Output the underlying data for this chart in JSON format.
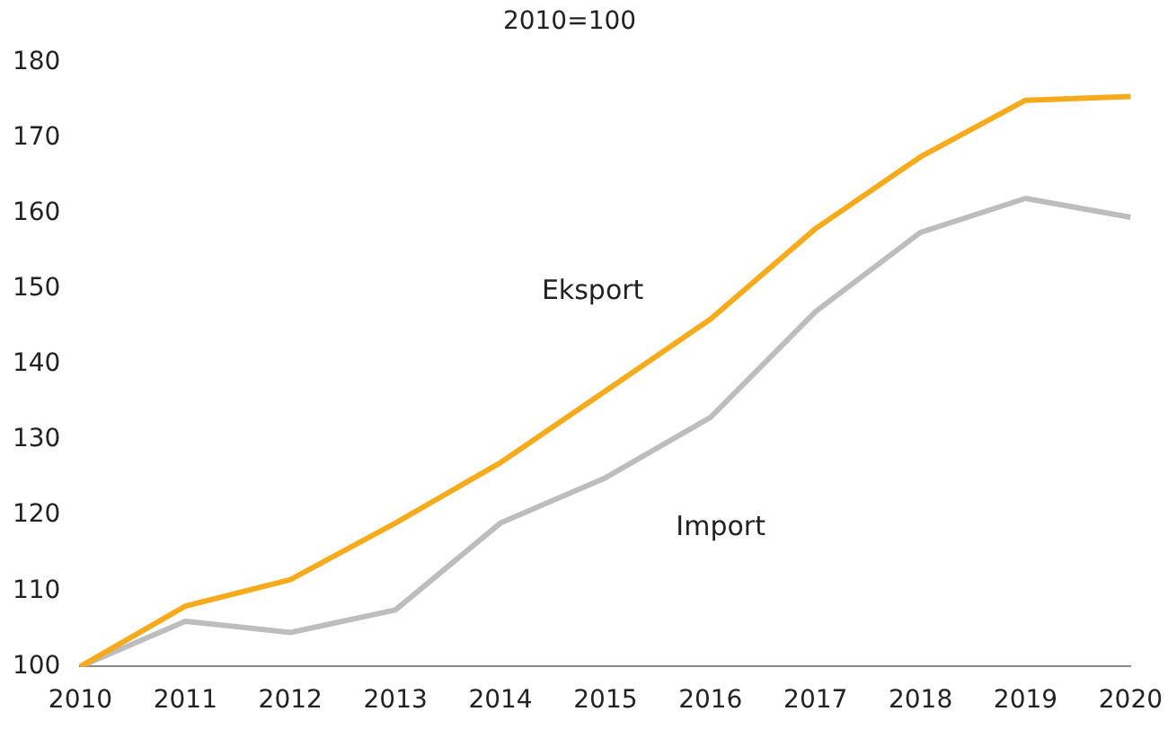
{
  "chart_data": {
    "type": "line",
    "title": "2010=100",
    "categories": [
      "2010",
      "2011",
      "2012",
      "2013",
      "2014",
      "2015",
      "2016",
      "2017",
      "2018",
      "2019",
      "2020"
    ],
    "series": [
      {
        "name": "Eksport",
        "color": "#f5ab1b",
        "values": [
          100,
          108,
          111.5,
          119,
          127,
          136.5,
          146,
          158,
          167.5,
          175,
          175.5
        ]
      },
      {
        "name": "Import",
        "color": "#bdbdbd",
        "values": [
          100,
          106,
          104.5,
          107.5,
          119,
          125,
          133,
          147,
          157.5,
          162,
          159.5
        ]
      }
    ],
    "ylim": [
      100,
      180
    ],
    "yticks": [
      100,
      110,
      120,
      130,
      140,
      150,
      160,
      170,
      180
    ],
    "grid": false,
    "legend": false,
    "marker": "none",
    "line_style": "solid"
  }
}
